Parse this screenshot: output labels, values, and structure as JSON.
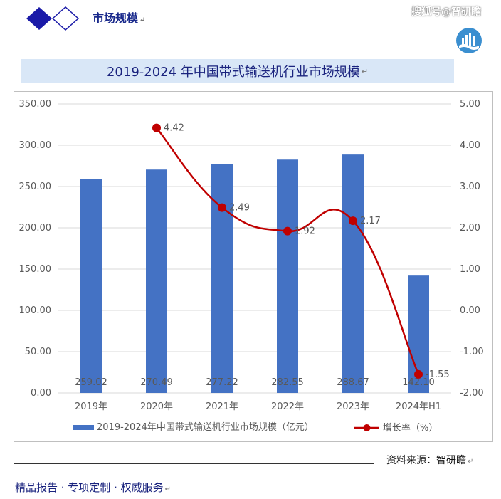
{
  "header": {
    "title": "市场规模"
  },
  "watermark": "搜狐号@智研瞻",
  "banner_title": "2019-2024 年中国带式输送机行业市场规模",
  "colors": {
    "bar": "#4472c4",
    "line": "#c00000",
    "banner": "#d9e7f7",
    "header_text": "#1a2a8c"
  },
  "chart_data": {
    "type": "bar",
    "categories": [
      "2019年",
      "2020年",
      "2021年",
      "2022年",
      "2023年",
      "2024年H1"
    ],
    "series": [
      {
        "name": "2019-2024年中国带式输送机行业市场规模（亿元）",
        "type": "bar",
        "axis": "left",
        "values": [
          259.02,
          270.49,
          277.22,
          282.55,
          288.67,
          142.1
        ],
        "labels": [
          "259.02",
          "270.49",
          "277.22",
          "282.55",
          "288.67",
          "142.10"
        ]
      },
      {
        "name": "增长率（%）",
        "type": "line",
        "axis": "right",
        "points": [
          {
            "category": "2020年",
            "value": 4.42,
            "label": "4.42"
          },
          {
            "category": "2021年",
            "value": 2.49,
            "label": "2.49"
          },
          {
            "category": "2022年",
            "value": 1.92,
            "label": "1.92"
          },
          {
            "category": "2023年",
            "value": 2.17,
            "label": "2.17"
          },
          {
            "category": "2024年H1",
            "value": -1.55,
            "label": "-1.55"
          }
        ]
      }
    ],
    "y_left": {
      "min": 0,
      "max": 350,
      "step": 50,
      "ticks": [
        "0.00",
        "50.00",
        "100.00",
        "150.00",
        "200.00",
        "250.00",
        "300.00",
        "350.00"
      ]
    },
    "y_right": {
      "min": -2,
      "max": 5,
      "step": 1,
      "ticks": [
        "-2.00",
        "-1.00",
        "0.00",
        "1.00",
        "2.00",
        "3.00",
        "4.00",
        "5.00"
      ]
    },
    "grid": true,
    "legend_position": "bottom"
  },
  "source": "资料来源：智研瞻",
  "footer": "精品报告 · 专项定制 · 权威服务"
}
